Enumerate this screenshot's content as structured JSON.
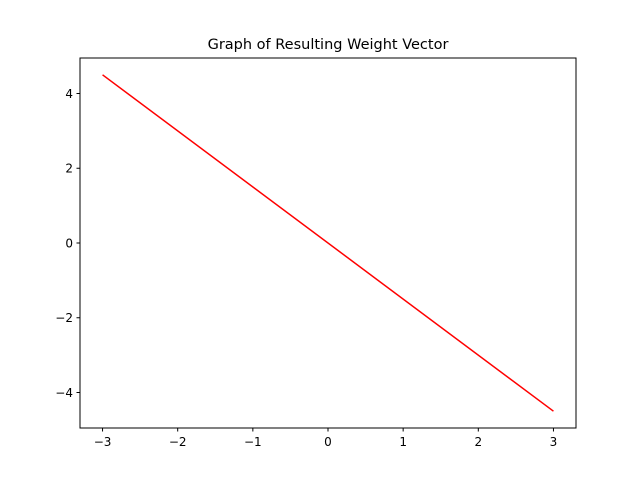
{
  "chart_data": {
    "type": "line",
    "title": "Graph of Resulting Weight Vector",
    "xlabel": "",
    "ylabel": "",
    "xlim": [
      -3.3,
      3.3
    ],
    "ylim": [
      -4.95,
      4.95
    ],
    "grid": false,
    "x_ticks": [
      -3,
      -2,
      -1,
      0,
      1,
      2,
      3
    ],
    "y_ticks": [
      -4,
      -2,
      0,
      2,
      4
    ],
    "series": [
      {
        "color": "#ff0000",
        "x": [
          -3,
          3
        ],
        "y": [
          4.5,
          -4.5
        ]
      }
    ]
  }
}
